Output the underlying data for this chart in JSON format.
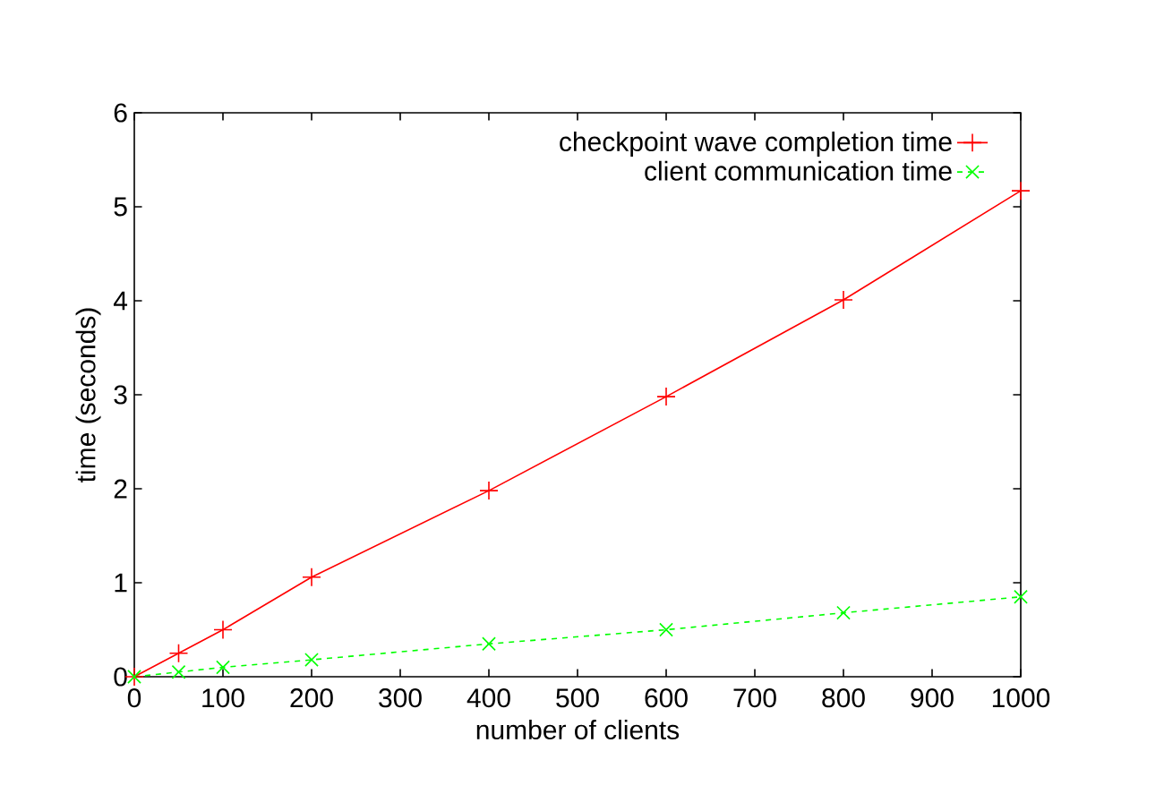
{
  "chart_data": {
    "type": "line",
    "xlabel": "number of clients",
    "ylabel": "time (seconds)",
    "xlim": [
      0,
      1000
    ],
    "ylim": [
      0,
      6
    ],
    "xticks": [
      0,
      100,
      200,
      300,
      400,
      500,
      600,
      700,
      800,
      900,
      1000
    ],
    "yticks": [
      0,
      1,
      2,
      3,
      4,
      5,
      6
    ],
    "legend": "top right",
    "grid": false,
    "series": [
      {
        "name": "checkpoint wave completion time",
        "color": "#ff0000",
        "marker": "plus",
        "line_style": "solid",
        "x": [
          0,
          50,
          100,
          200,
          400,
          600,
          800,
          1000
        ],
        "values": [
          0,
          0.25,
          0.5,
          1.06,
          1.98,
          2.98,
          4.01,
          5.17
        ]
      },
      {
        "name": "client communication time",
        "color": "#00ff00",
        "marker": "cross",
        "line_style": "dashed",
        "x": [
          0,
          50,
          100,
          200,
          400,
          600,
          800,
          1000
        ],
        "values": [
          0,
          0.05,
          0.1,
          0.18,
          0.35,
          0.5,
          0.68,
          0.85
        ]
      }
    ]
  }
}
